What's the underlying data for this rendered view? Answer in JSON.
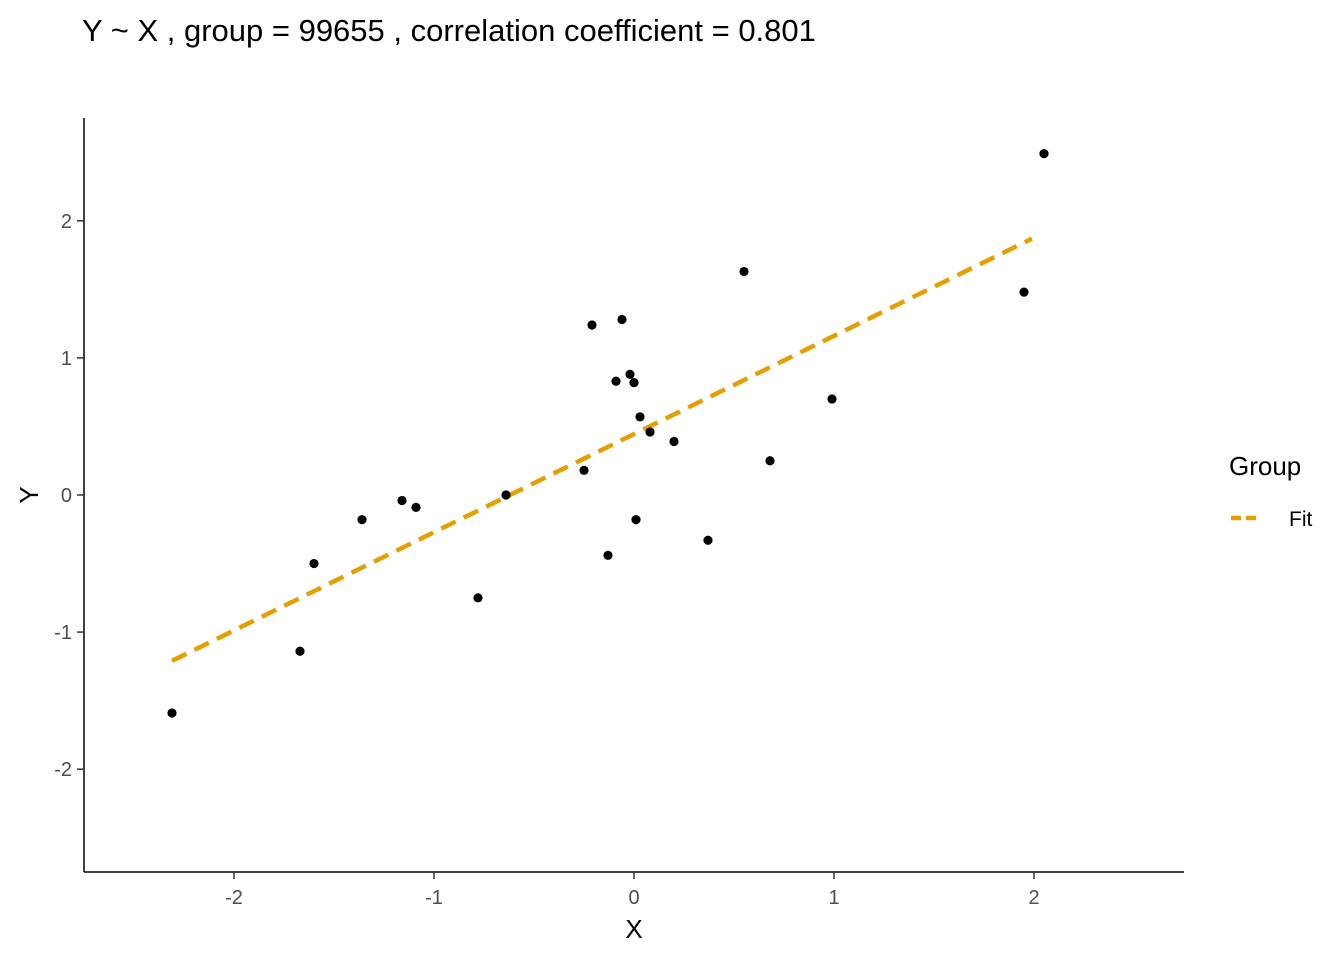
{
  "chart_data": {
    "type": "scatter",
    "title": "Y ~ X , group =  99655 , correlation coefficient =  0.801",
    "xlabel": "X",
    "ylabel": "Y",
    "xlim": [
      -2.75,
      2.75
    ],
    "ylim": [
      -2.75,
      2.75
    ],
    "xticks": [
      -2,
      -1,
      0,
      1,
      2
    ],
    "yticks": [
      -2,
      -1,
      0,
      1,
      2
    ],
    "xtick_labels": [
      "-2",
      "-1",
      "0",
      "1",
      "2"
    ],
    "ytick_labels": [
      "-2",
      "-1",
      "0",
      "1",
      "2"
    ],
    "grid": false,
    "points": [
      {
        "x": -2.31,
        "y": -1.59
      },
      {
        "x": -1.67,
        "y": -1.14
      },
      {
        "x": -1.6,
        "y": -0.5
      },
      {
        "x": -1.36,
        "y": -0.18
      },
      {
        "x": -1.16,
        "y": -0.04
      },
      {
        "x": -1.09,
        "y": -0.09
      },
      {
        "x": -0.78,
        "y": -0.75
      },
      {
        "x": -0.64,
        "y": 0.0
      },
      {
        "x": -0.25,
        "y": 0.18
      },
      {
        "x": -0.21,
        "y": 1.24
      },
      {
        "x": -0.13,
        "y": -0.44
      },
      {
        "x": -0.09,
        "y": 0.83
      },
      {
        "x": -0.06,
        "y": 1.28
      },
      {
        "x": -0.02,
        "y": 0.88
      },
      {
        "x": 0.0,
        "y": 0.82
      },
      {
        "x": 0.01,
        "y": -0.18
      },
      {
        "x": 0.03,
        "y": 0.57
      },
      {
        "x": 0.08,
        "y": 0.46
      },
      {
        "x": 0.2,
        "y": 0.39
      },
      {
        "x": 0.37,
        "y": -0.33
      },
      {
        "x": 0.55,
        "y": 1.63
      },
      {
        "x": 0.68,
        "y": 0.25
      },
      {
        "x": 0.99,
        "y": 0.7
      },
      {
        "x": 1.95,
        "y": 1.48
      },
      {
        "x": 2.05,
        "y": 2.49
      }
    ],
    "fit_line": {
      "name": "Fit",
      "x": [
        -2.31,
        1.99
      ],
      "y": [
        -1.21,
        1.87
      ],
      "style": "dashed",
      "color": "#E69F00"
    },
    "point_color": "#000000",
    "legend": {
      "title": "Group",
      "entries": [
        {
          "label": "Fit",
          "color": "#E69F00",
          "style": "dashed"
        }
      ],
      "placement": "right"
    }
  }
}
